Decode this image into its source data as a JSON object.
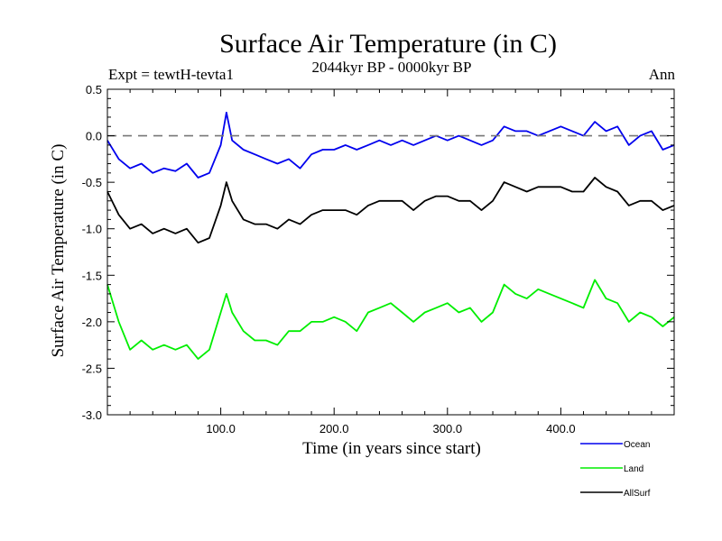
{
  "chart_data": {
    "type": "line",
    "title": "Surface Air Temperature (in C)",
    "subtitle": "2044kyr BP - 0000kyr BP",
    "experiment_label": "Expt = tewtH-tevta1",
    "season_label": "Ann",
    "xlabel": "Time (in years since start)",
    "ylabel": "Surface Air Temperature (in C)",
    "xlim": [
      0,
      500
    ],
    "ylim": [
      -3.0,
      0.5
    ],
    "x_ticks": [
      100,
      200,
      300,
      400
    ],
    "x_tick_labels": [
      "100.0",
      "200.0",
      "300.0",
      "400.0"
    ],
    "y_ticks": [
      0.5,
      0.0,
      -0.5,
      -1.0,
      -1.5,
      -2.0,
      -2.5,
      -3.0
    ],
    "y_tick_labels": [
      "0.5",
      "0.0",
      "-0.5",
      "-1.0",
      "-1.5",
      "-2.0",
      "-2.5",
      "-3.0"
    ],
    "reference_line": 0.0,
    "x": [
      0,
      10,
      20,
      30,
      40,
      50,
      60,
      70,
      80,
      90,
      100,
      105,
      110,
      120,
      130,
      140,
      150,
      160,
      170,
      180,
      190,
      200,
      210,
      220,
      230,
      240,
      250,
      260,
      270,
      280,
      290,
      300,
      310,
      320,
      330,
      340,
      350,
      360,
      370,
      380,
      390,
      400,
      410,
      420,
      430,
      440,
      450,
      460,
      470,
      480,
      490,
      500
    ],
    "series": [
      {
        "name": "Ocean",
        "color": "#0000ee",
        "values": [
          -0.05,
          -0.25,
          -0.35,
          -0.3,
          -0.4,
          -0.35,
          -0.38,
          -0.3,
          -0.45,
          -0.4,
          -0.1,
          0.25,
          -0.05,
          -0.15,
          -0.2,
          -0.25,
          -0.3,
          -0.25,
          -0.35,
          -0.2,
          -0.15,
          -0.15,
          -0.1,
          -0.15,
          -0.1,
          -0.05,
          -0.1,
          -0.05,
          -0.1,
          -0.05,
          0.0,
          -0.05,
          0.0,
          -0.05,
          -0.1,
          -0.05,
          0.1,
          0.05,
          0.05,
          0.0,
          0.05,
          0.1,
          0.05,
          0.0,
          0.15,
          0.05,
          0.1,
          -0.1,
          0.0,
          0.05,
          -0.15,
          -0.1
        ]
      },
      {
        "name": "Land",
        "color": "#00ee00",
        "values": [
          -1.6,
          -2.0,
          -2.3,
          -2.2,
          -2.3,
          -2.25,
          -2.3,
          -2.25,
          -2.4,
          -2.3,
          -1.9,
          -1.7,
          -1.9,
          -2.1,
          -2.2,
          -2.2,
          -2.25,
          -2.1,
          -2.1,
          -2.0,
          -2.0,
          -1.95,
          -2.0,
          -2.1,
          -1.9,
          -1.85,
          -1.8,
          -1.9,
          -2.0,
          -1.9,
          -1.85,
          -1.8,
          -1.9,
          -1.85,
          -2.0,
          -1.9,
          -1.6,
          -1.7,
          -1.75,
          -1.65,
          -1.7,
          -1.75,
          -1.8,
          -1.85,
          -1.55,
          -1.75,
          -1.8,
          -2.0,
          -1.9,
          -1.95,
          -2.05,
          -1.95
        ]
      },
      {
        "name": "AllSurf",
        "color": "#000000",
        "values": [
          -0.6,
          -0.85,
          -1.0,
          -0.95,
          -1.05,
          -1.0,
          -1.05,
          -1.0,
          -1.15,
          -1.1,
          -0.75,
          -0.5,
          -0.7,
          -0.9,
          -0.95,
          -0.95,
          -1.0,
          -0.9,
          -0.95,
          -0.85,
          -0.8,
          -0.8,
          -0.8,
          -0.85,
          -0.75,
          -0.7,
          -0.7,
          -0.7,
          -0.8,
          -0.7,
          -0.65,
          -0.65,
          -0.7,
          -0.7,
          -0.8,
          -0.7,
          -0.5,
          -0.55,
          -0.6,
          -0.55,
          -0.55,
          -0.55,
          -0.6,
          -0.6,
          -0.45,
          -0.55,
          -0.6,
          -0.75,
          -0.7,
          -0.7,
          -0.8,
          -0.75
        ]
      }
    ],
    "legend": [
      {
        "name": "Ocean",
        "color": "#0000ee"
      },
      {
        "name": "Land",
        "color": "#00ee00"
      },
      {
        "name": "AllSurf",
        "color": "#000000"
      }
    ]
  }
}
